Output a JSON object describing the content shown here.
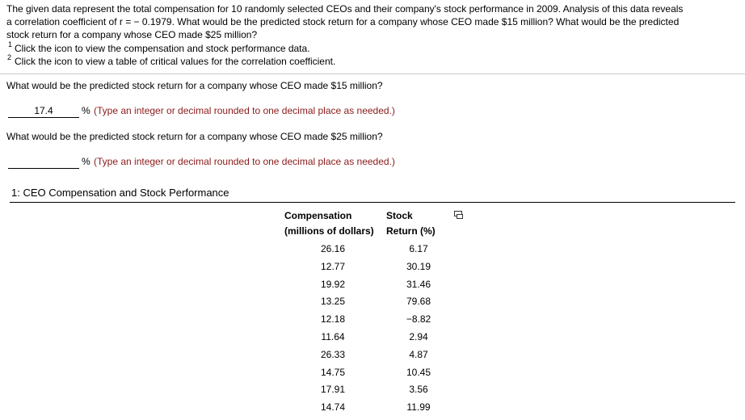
{
  "intro": {
    "lines": [
      "The given data represent the total compensation for 10 randomly selected CEOs and their company's stock performance in 2009. Analysis of this data reveals",
      "a correlation coefficient of r = − 0.1979. What would be the predicted stock return for a company whose CEO made $15 million? What would be the predicted",
      "stock return for a company whose CEO made $25 million?"
    ]
  },
  "footnotes": [
    {
      "number": "1",
      "text": "Click the icon to view the compensation and stock performance data."
    },
    {
      "number": "2",
      "text": "Click the icon to view a table of critical values for the correlation coefficient."
    }
  ],
  "questions": [
    {
      "text": "What would be the predicted stock return for a company whose CEO made $15 million?",
      "answer": "17.4",
      "unit": "%",
      "hint": "(Type an integer or decimal rounded to one decimal place as needed.)"
    },
    {
      "text": "What would be the predicted stock return for a company whose CEO made $25 million?",
      "unit": "%",
      "hint": "(Type an integer or decimal rounded to one decimal place as needed.)"
    }
  ],
  "panel": {
    "title": "1: CEO Compensation and Stock Performance"
  },
  "table": {
    "headers": [
      [
        "Compensation",
        "(millions of dollars)"
      ],
      [
        "Stock",
        "Return (%)"
      ]
    ],
    "rows": [
      [
        "26.16",
        "6.17"
      ],
      [
        "12.77",
        "30.19"
      ],
      [
        "19.92",
        "31.46"
      ],
      [
        "13.25",
        "79.68"
      ],
      [
        "12.18",
        "−8.82"
      ],
      [
        "11.64",
        "2.94"
      ],
      [
        "26.33",
        "4.87"
      ],
      [
        "14.75",
        "10.45"
      ],
      [
        "17.91",
        "3.56"
      ],
      [
        "14.74",
        "11.99"
      ]
    ]
  }
}
